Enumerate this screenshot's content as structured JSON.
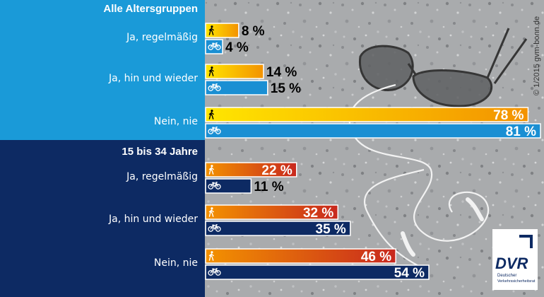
{
  "chart_data": [
    {
      "type": "bar",
      "title": "Alle Altersgruppen",
      "categories": [
        "Ja, regelmäßig",
        "Ja, hin und wieder",
        "Nein, nie"
      ],
      "series": [
        {
          "icon": "pedestrian-icon",
          "values": [
            8,
            14,
            78
          ],
          "labels": [
            "8 %",
            "14 %",
            "78 %"
          ]
        },
        {
          "icon": "bicycle-icon",
          "values": [
            4,
            15,
            81
          ],
          "labels": [
            "4 %",
            "15 %",
            "81 %"
          ]
        }
      ],
      "xlim": [
        0,
        81
      ]
    },
    {
      "type": "bar",
      "title": "15 bis 34 Jahre",
      "categories": [
        "Ja, regelmäßig",
        "Ja, hin und wieder",
        "Nein, nie"
      ],
      "series": [
        {
          "icon": "pedestrian-icon",
          "values": [
            22,
            32,
            46
          ],
          "labels": [
            "22 %",
            "32 %",
            "46 %"
          ]
        },
        {
          "icon": "bicycle-icon",
          "values": [
            11,
            35,
            54
          ],
          "labels": [
            "11 %",
            "35 %",
            "54 %"
          ]
        }
      ],
      "xlim": [
        0,
        81
      ]
    }
  ],
  "credit": "© 1/2015 gvm-bonn.de",
  "logo": {
    "text": "DVR",
    "caption_line1": "Deutscher",
    "caption_line2": "Verkehrssicherheitsrat"
  },
  "colors": {
    "top_panel": "#1a9ad8",
    "bottom_panel": "#0d2a63",
    "ped_top_start": "#ffe600",
    "ped_top_end": "#f39200",
    "bike_top": "#1a8fd3",
    "ped_bottom_start": "#f39200",
    "ped_bottom_end": "#c8281e",
    "bike_bottom": "#0d2a63"
  }
}
